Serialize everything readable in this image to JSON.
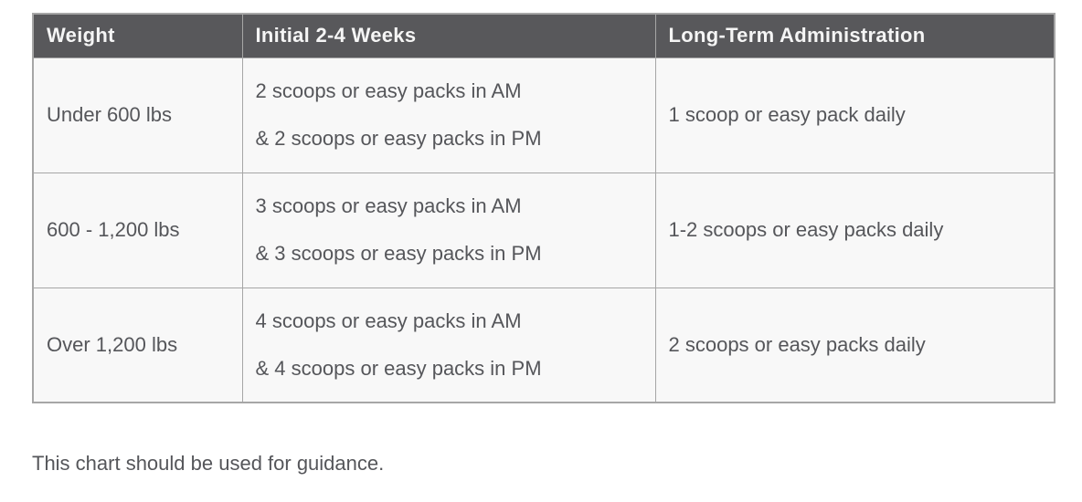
{
  "table": {
    "headers": [
      "Weight",
      "Initial 2-4 Weeks",
      "Long-Term Administration"
    ],
    "rows": [
      {
        "weight": "Under 600 lbs",
        "initial_am": "2 scoops or easy packs in AM",
        "initial_pm": "& 2 scoops or easy packs in PM",
        "long_term": "1 scoop or easy pack daily"
      },
      {
        "weight": "600 - 1,200 lbs",
        "initial_am": "3 scoops or easy packs in AM",
        "initial_pm": "& 3 scoops or easy packs in PM",
        "long_term": "1-2 scoops or easy packs daily"
      },
      {
        "weight": "Over 1,200 lbs",
        "initial_am": "4 scoops or easy packs in AM",
        "initial_pm": "& 4 scoops or easy packs in PM",
        "long_term": "2 scoops or easy packs daily"
      }
    ]
  },
  "caption": "This chart should be used for guidance.",
  "colors": {
    "header_bg": "#58585b",
    "header_text": "#f5f5f5",
    "body_bg": "#f8f8f8",
    "body_text": "#55565a",
    "border": "#a6a6a6",
    "page_bg": "#ffffff"
  }
}
